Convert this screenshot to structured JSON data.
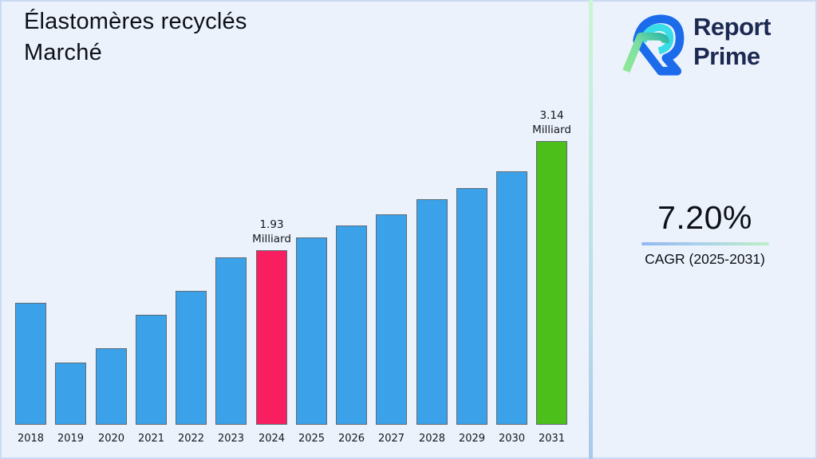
{
  "page": {
    "background": "#ECF2FC"
  },
  "title": {
    "line1": "Élastomères recyclés",
    "line2": "Marché"
  },
  "brand": {
    "name_line1": "Report",
    "name_line2": "Prime",
    "text_color": "#1C2951",
    "mark_colors": {
      "blue": "#1B6BEB",
      "cyan": "#38DDE8",
      "green": "#8FE996",
      "teal": "#2FB9A8"
    }
  },
  "cagr": {
    "value": "7.20%",
    "label": "CAGR (2025-2031)"
  },
  "chart_data": {
    "type": "bar",
    "title": "Élastomères recyclés Marché",
    "unit": "Milliard",
    "categories": [
      "2018",
      "2019",
      "2020",
      "2021",
      "2022",
      "2023",
      "2024",
      "2025",
      "2026",
      "2027",
      "2028",
      "2029",
      "2030",
      "2031"
    ],
    "values": [
      1.35,
      0.69,
      0.85,
      1.22,
      1.48,
      1.85,
      1.93,
      2.07,
      2.2,
      2.33,
      2.49,
      2.62,
      2.8,
      3.14
    ],
    "bar_colors": {
      "default": "#3BA2E9",
      "2024": "#F91E5F",
      "2031": "#4CBF1A"
    },
    "annotations": [
      {
        "year": "2024",
        "value_line": "1.93",
        "unit_line": "Milliard"
      },
      {
        "year": "2031",
        "value_line": "3.14",
        "unit_line": "Milliard"
      }
    ],
    "xlabel": "",
    "ylabel": "",
    "ylim": [
      0,
      3.6
    ],
    "grid": false,
    "legend": null
  }
}
